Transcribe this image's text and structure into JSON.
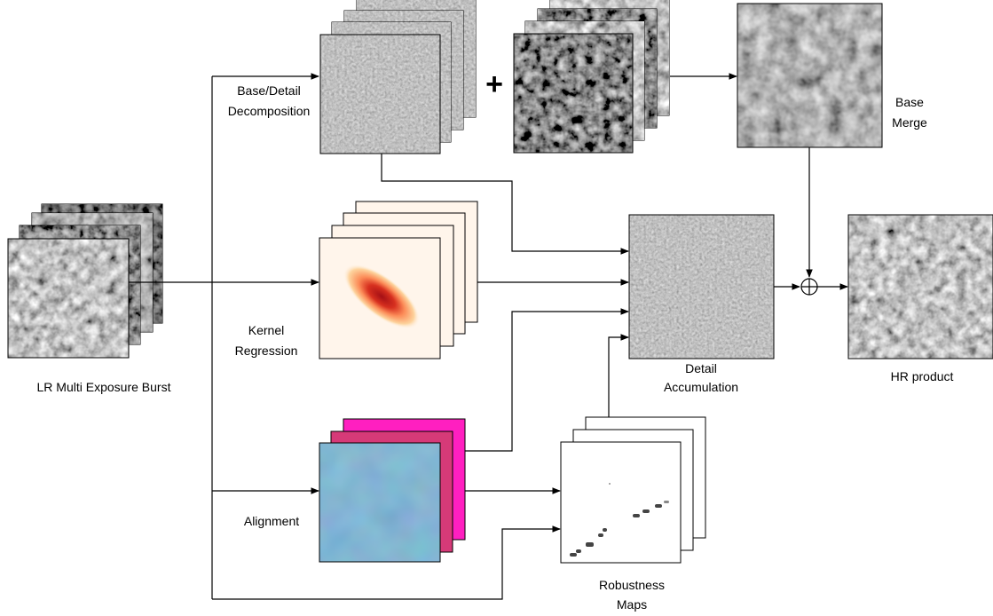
{
  "labels": {
    "lr_burst": "LR Multi Exposure Burst",
    "decomp_line1": "Base/Detail",
    "decomp_line2": "Decomposition",
    "kernel_line1": "Kernel",
    "kernel_line2": "Regression",
    "alignment": "Alignment",
    "base_merge_line1": "Base",
    "base_merge_line2": "Merge",
    "detail_acc_line1": "Detail",
    "detail_acc_line2": "Accumulation",
    "robustness_line1": "Robustness",
    "robustness_line2": "Maps",
    "hr_product": "HR product",
    "plus_symbol": "+"
  },
  "colors": {
    "kernel_peak": "#a50f15",
    "kernel_bg": "#fff5eb",
    "alignment_front": "#3d7fae",
    "alignment_mid": "#e0348a",
    "alignment_back": "#ff1fc0",
    "detail_gray": "#8a8a8a",
    "satellite_dark": "#2b2b2b"
  },
  "icons": {
    "sum_node": "circled-plus-icon"
  }
}
